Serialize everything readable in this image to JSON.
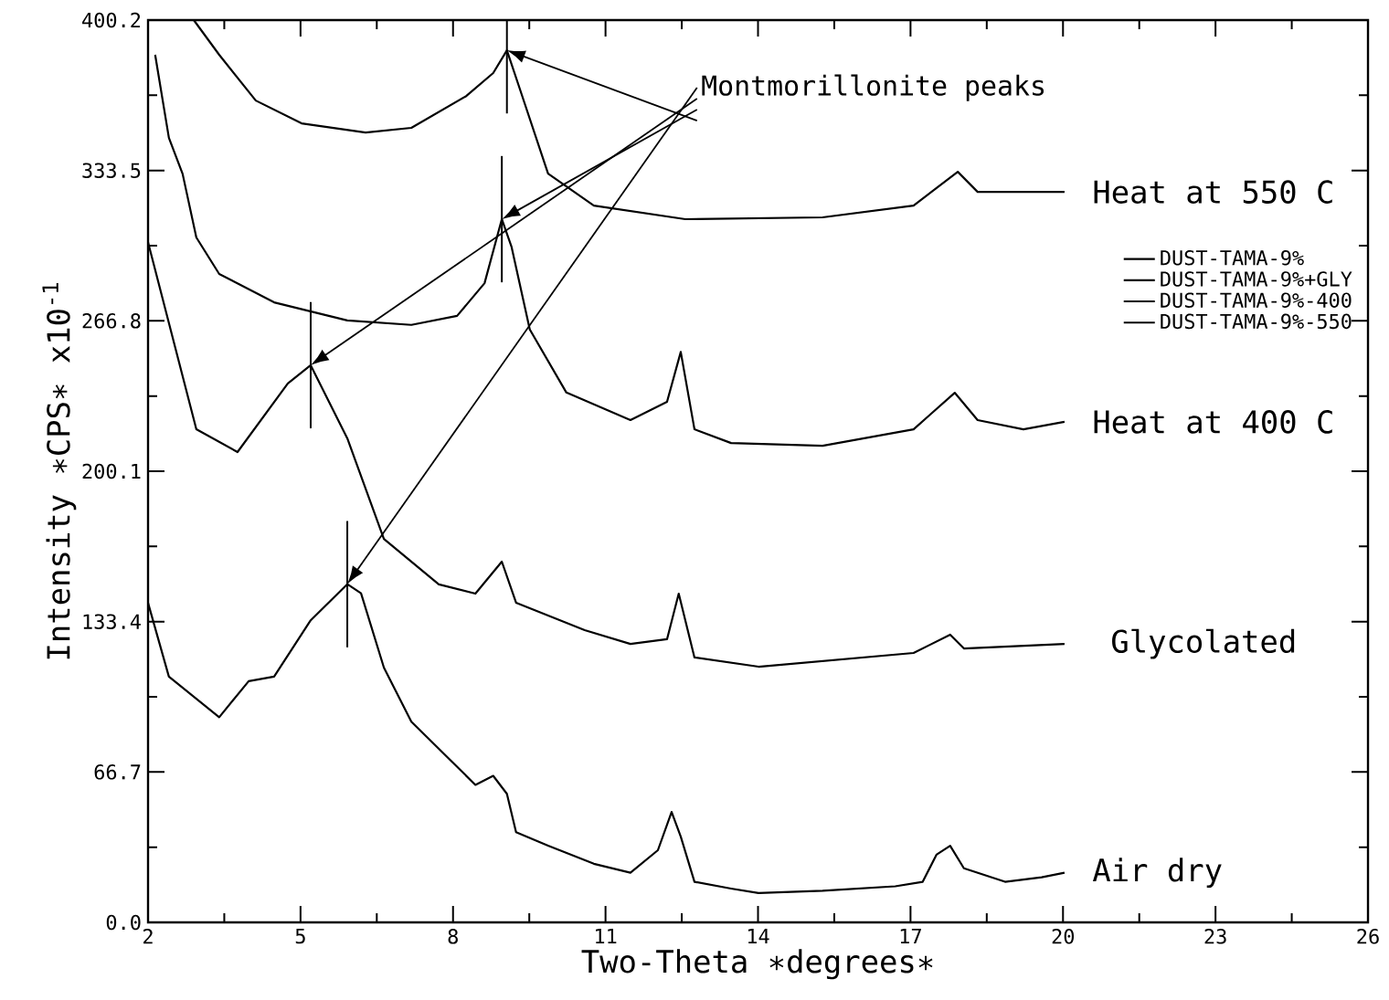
{
  "chart_data": {
    "type": "line",
    "xlabel": "Two-Theta ∗degrees∗",
    "ylabel": "Intensity ∗CPS∗ x10$^{-1}$",
    "xlim": [
      2,
      26
    ],
    "xticks": [
      2,
      5,
      8,
      11,
      14,
      17,
      20,
      23,
      26
    ],
    "ylim": [
      0,
      400.2
    ],
    "yticks": [
      {
        "value": 0,
        "label": "0.0"
      },
      {
        "value": 66.7,
        "label": "66.7"
      },
      {
        "value": 133.4,
        "label": "133.4"
      },
      {
        "value": 200.1,
        "label": "200.1"
      },
      {
        "value": 266.8,
        "label": "266.8"
      },
      {
        "value": 333.5,
        "label": "333.5"
      },
      {
        "value": 400.2,
        "label": "400.2"
      }
    ],
    "legend": "right",
    "grid": false,
    "series": [
      {
        "name": "DUST-TAMA-9%",
        "color": "#000000",
        "x": [
          2.0,
          2.41,
          3.4,
          3.98,
          4.48,
          5.2,
          5.92,
          6.19,
          6.64,
          7.18,
          7.9,
          8.44,
          8.79,
          9.06,
          9.24,
          9.87,
          10.77,
          11.49,
          12.03,
          12.3,
          12.48,
          12.75,
          13.47,
          14.01,
          15.27,
          16.7,
          17.24,
          17.51,
          17.78,
          18.05,
          18.86,
          19.58,
          20.03
        ],
        "values": [
          141.7,
          109,
          91,
          107,
          109,
          134,
          150,
          146,
          113,
          89,
          73,
          61,
          65,
          57,
          40,
          34,
          26,
          22,
          32,
          49,
          38,
          18,
          15,
          13,
          14,
          16,
          18,
          30,
          34,
          24,
          18,
          20,
          22
        ]
      },
      {
        "name": "DUST-TAMA-9%+GLY",
        "color": "#000000",
        "x": [
          2.0,
          2.95,
          3.76,
          4.75,
          5.2,
          5.92,
          6.64,
          7.72,
          8.44,
          8.96,
          9.24,
          10.59,
          11.49,
          12.21,
          12.44,
          12.75,
          14.01,
          17.06,
          17.78,
          18.05,
          20.03
        ],
        "values": [
          301.7,
          218.7,
          208.6,
          239,
          247.1,
          214.7,
          170.1,
          149.9,
          145.8,
          160,
          141.8,
          129.6,
          123.5,
          125.6,
          145.8,
          117.5,
          113.4,
          119.5,
          127.6,
          121.5,
          123.5
        ]
      },
      {
        "name": "DUST-TAMA-9%-400",
        "color": "#000000",
        "x": [
          2.14,
          2.41,
          2.68,
          2.95,
          3.4,
          4.48,
          5.92,
          7.18,
          8.08,
          8.62,
          8.96,
          9.15,
          9.51,
          10.23,
          11.49,
          12.21,
          12.48,
          12.75,
          13.47,
          15.27,
          17.06,
          17.87,
          18.32,
          19.22,
          20.03
        ],
        "values": [
          384.8,
          348,
          332,
          303.8,
          287.6,
          275,
          267,
          265,
          269,
          283.5,
          311.9,
          299.7,
          263,
          235,
          222.8,
          230.9,
          253,
          218.7,
          212.6,
          211.4,
          218.7,
          234.9,
          222.8,
          218.7,
          222
        ]
      },
      {
        "name": "DUST-TAMA-9%-550",
        "color": "#000000",
        "x": [
          2.9,
          3.4,
          4.12,
          5.02,
          6.28,
          7.18,
          8.26,
          8.79,
          9.06,
          9.33,
          9.87,
          10.77,
          12.57,
          15.27,
          17.06,
          17.93,
          18.32,
          20.03
        ],
        "values": [
          400.2,
          384.8,
          364.5,
          354.4,
          350.3,
          352.4,
          366.5,
          376.7,
          386.8,
          368.6,
          332.1,
          317.9,
          311.9,
          312.7,
          317.9,
          332.9,
          324,
          324
        ]
      }
    ],
    "annotations": [
      "Heat at 550 C",
      "Heat at 400 C",
      "Glycolated",
      "Air dry",
      "Montmorillonite peaks"
    ]
  }
}
